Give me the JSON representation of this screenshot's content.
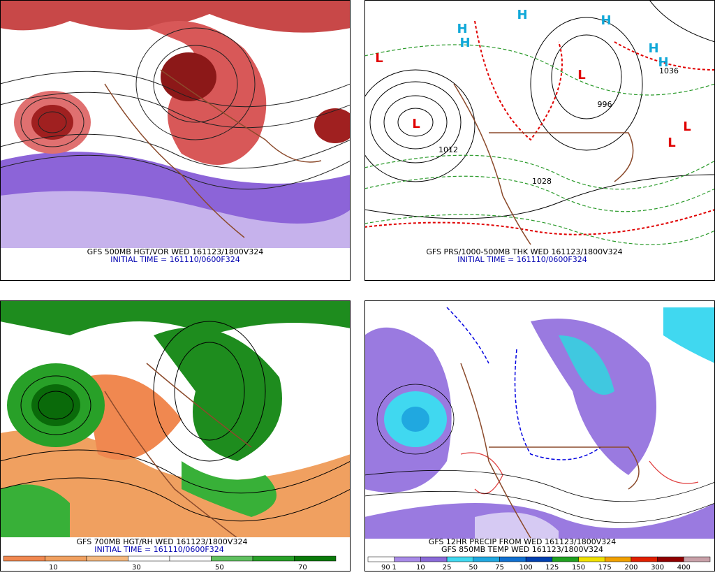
{
  "panels": [
    {
      "caption": "GFS 500MB HGT/VOR WED 161123/1800V324",
      "initial": "INITIAL TIME = 161110/0600F324"
    },
    {
      "caption": "GFS PRS/1000-500MB THK WED 161123/1800V324",
      "initial": "INITIAL TIME = 161110/0600F324",
      "labels": [
        "H",
        "H",
        "H",
        "H",
        "H",
        "H",
        "L",
        "L",
        "L",
        "L",
        "L",
        "996",
        "1012",
        "1036",
        "1028"
      ]
    },
    {
      "caption": "GFS 700MB HGT/RH WED 161123/1800V324",
      "initial": "INITIAL TIME = 161110/0600F324",
      "colorbar": [
        "10",
        "30",
        "50",
        "70",
        "90"
      ]
    },
    {
      "caption": "GFS 12HR PRECIP FROM WED 161123/1800V324",
      "initial": "GFS 850MB TEMP WED 161123/1800V324",
      "colorbar": [
        "1",
        "10",
        "25",
        "50",
        "75",
        "100",
        "125",
        "150",
        "175",
        "200",
        "300",
        "400"
      ]
    }
  ]
}
